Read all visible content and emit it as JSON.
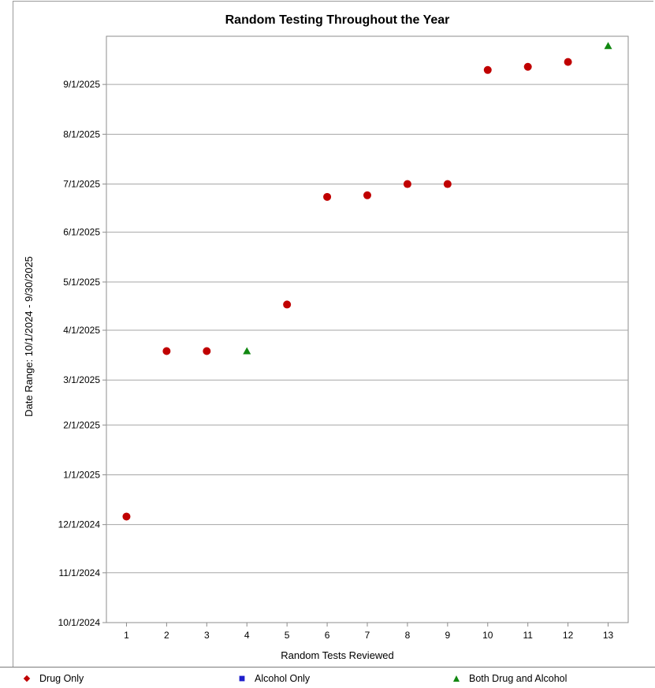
{
  "chart_data": {
    "type": "scatter",
    "title": "Random Testing Throughout the Year",
    "xlabel": "Random Tests Reviewed",
    "ylabel": "Date Range: 10/1/2024 - 9/30/2025",
    "x_ticks": [
      "1",
      "2",
      "3",
      "4",
      "5",
      "6",
      "7",
      "8",
      "9",
      "10",
      "11",
      "12",
      "13"
    ],
    "xlim": [
      0.5,
      13.5
    ],
    "y_ticks": [
      "10/1/2024",
      "11/1/2024",
      "12/1/2024",
      "1/1/2025",
      "2/1/2025",
      "3/1/2025",
      "4/1/2025",
      "5/1/2025",
      "6/1/2025",
      "7/1/2025",
      "8/1/2025",
      "9/1/2025"
    ],
    "ylim": [
      "10/1/2024",
      "9/30/2025"
    ],
    "grid": "horizontal",
    "legend_position": "bottom",
    "series": [
      {
        "name": "Drug Only",
        "marker": "diamond",
        "color": "#c00000",
        "points": [
          {
            "x": 1,
            "date": "12/6/2024"
          },
          {
            "x": 2,
            "date": "3/19/2025"
          },
          {
            "x": 3,
            "date": "3/19/2025"
          },
          {
            "x": 5,
            "date": "4/17/2025"
          },
          {
            "x": 6,
            "date": "6/23/2025"
          },
          {
            "x": 7,
            "date": "6/24/2025"
          },
          {
            "x": 8,
            "date": "7/1/2025"
          },
          {
            "x": 9,
            "date": "7/1/2025"
          },
          {
            "x": 10,
            "date": "9/10/2025"
          },
          {
            "x": 11,
            "date": "9/12/2025"
          },
          {
            "x": 12,
            "date": "9/15/2025"
          }
        ]
      },
      {
        "name": "Alcohol Only",
        "marker": "square",
        "color": "#1f1fcc",
        "points": []
      },
      {
        "name": "Both Drug and Alcohol",
        "marker": "triangle",
        "color": "#118811",
        "points": [
          {
            "x": 4,
            "date": "3/19/2025"
          },
          {
            "x": 13,
            "date": "9/25/2025"
          }
        ]
      }
    ]
  }
}
